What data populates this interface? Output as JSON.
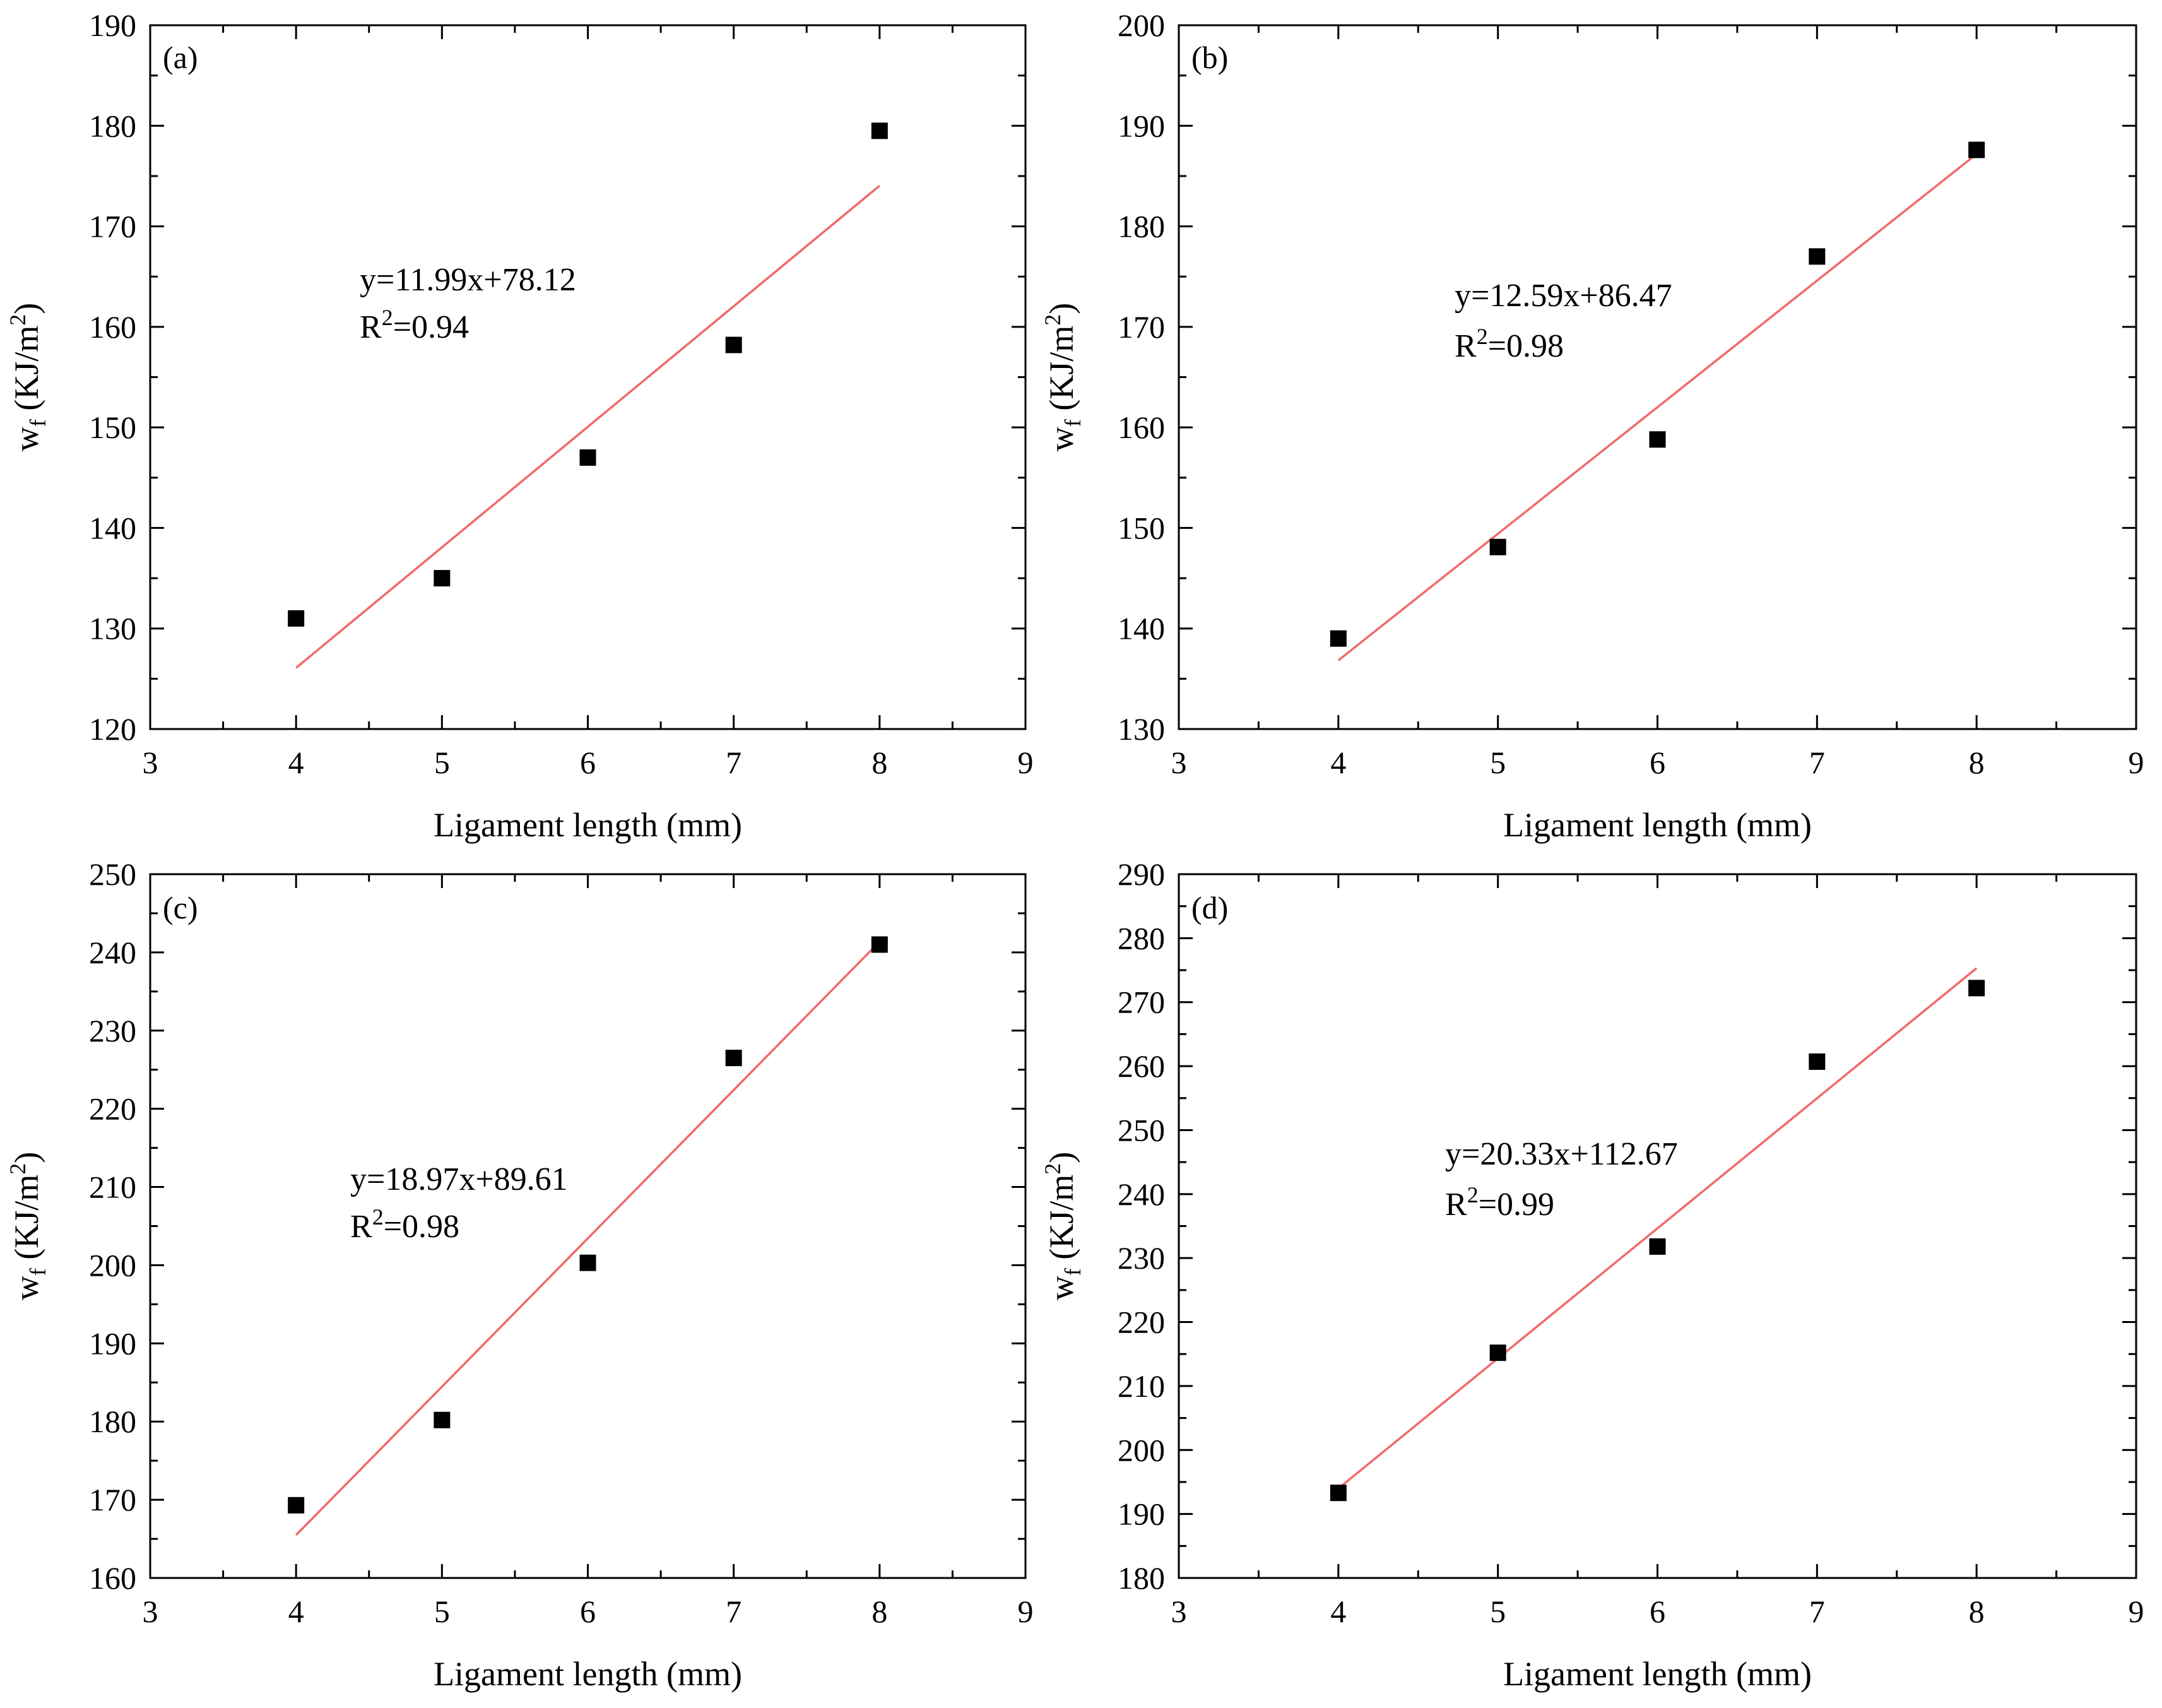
{
  "figure": {
    "panel_count": 4,
    "colors": {
      "fit_line": "#f06a6a",
      "marker": "#000000",
      "axis": "#000000",
      "background": "#ffffff"
    }
  },
  "chart_data": [
    {
      "type": "scatter",
      "panel_label": "(a)",
      "xlabel": "Ligament length (mm)",
      "ylabel": {
        "main": "w",
        "sub": "f",
        "unit": "(KJ/m",
        "sup": "2",
        "close": ")"
      },
      "xlim": [
        3,
        9
      ],
      "ylim": [
        120,
        190
      ],
      "xticks": [
        3,
        4,
        5,
        6,
        7,
        8,
        9
      ],
      "yticks": [
        120,
        130,
        140,
        150,
        160,
        170,
        180,
        190
      ],
      "x": [
        4,
        5,
        6,
        7,
        8
      ],
      "y": [
        131,
        135,
        147,
        158.2,
        179.5
      ],
      "fit": {
        "slope": 11.99,
        "intercept": 78.12,
        "x_range": [
          4,
          8
        ]
      },
      "equation": "y=11.99x+78.12",
      "r2": {
        "prefix": "R",
        "sup": "2",
        "value": "=0.94"
      }
    },
    {
      "type": "scatter",
      "panel_label": "(b)",
      "xlabel": "Ligament length (mm)",
      "ylabel": {
        "main": "w",
        "sub": "f",
        "unit": "(KJ/m",
        "sup": "2",
        "close": ")"
      },
      "xlim": [
        3,
        9
      ],
      "ylim": [
        130,
        200
      ],
      "xticks": [
        3,
        4,
        5,
        6,
        7,
        8,
        9
      ],
      "yticks": [
        130,
        140,
        150,
        160,
        170,
        180,
        190,
        200
      ],
      "x": [
        4,
        5,
        6,
        7,
        8
      ],
      "y": [
        139,
        148.1,
        158.8,
        177,
        187.6
      ],
      "fit": {
        "slope": 12.59,
        "intercept": 86.47,
        "x_range": [
          4,
          8
        ]
      },
      "equation": "y=12.59x+86.47",
      "r2": {
        "prefix": "R",
        "sup": "2",
        "value": "=0.98"
      }
    },
    {
      "type": "scatter",
      "panel_label": "(c)",
      "xlabel": "Ligament length (mm)",
      "ylabel": {
        "main": "w",
        "sub": "f",
        "unit": "(KJ/m",
        "sup": "2",
        "close": ")"
      },
      "xlim": [
        3,
        9
      ],
      "ylim": [
        160,
        250
      ],
      "xticks": [
        3,
        4,
        5,
        6,
        7,
        8,
        9
      ],
      "yticks": [
        160,
        170,
        180,
        190,
        200,
        210,
        220,
        230,
        240,
        250
      ],
      "x": [
        4,
        5,
        6,
        7,
        8
      ],
      "y": [
        169.3,
        180.2,
        200.3,
        226.5,
        241
      ],
      "fit": {
        "slope": 18.97,
        "intercept": 89.61,
        "x_range": [
          4,
          8
        ]
      },
      "equation": "y=18.97x+89.61",
      "r2": {
        "prefix": "R",
        "sup": "2",
        "value": "=0.98"
      }
    },
    {
      "type": "scatter",
      "panel_label": "(d)",
      "xlabel": "Ligament length (mm)",
      "ylabel": {
        "main": "w",
        "sub": "f",
        "unit": "(KJ/m",
        "sup": "2",
        "close": ")"
      },
      "xlim": [
        3,
        9
      ],
      "ylim": [
        180,
        290
      ],
      "xticks": [
        3,
        4,
        5,
        6,
        7,
        8,
        9
      ],
      "yticks": [
        180,
        190,
        200,
        210,
        220,
        230,
        240,
        250,
        260,
        270,
        280,
        290
      ],
      "x": [
        4,
        5,
        6,
        7,
        8
      ],
      "y": [
        193.3,
        215.2,
        231.8,
        260.7,
        272.2
      ],
      "fit": {
        "slope": 20.33,
        "intercept": 112.67,
        "x_range": [
          4,
          8
        ]
      },
      "equation": "y=20.33x+112.67",
      "r2": {
        "prefix": "R",
        "sup": "2",
        "value": "=0.99"
      }
    }
  ]
}
